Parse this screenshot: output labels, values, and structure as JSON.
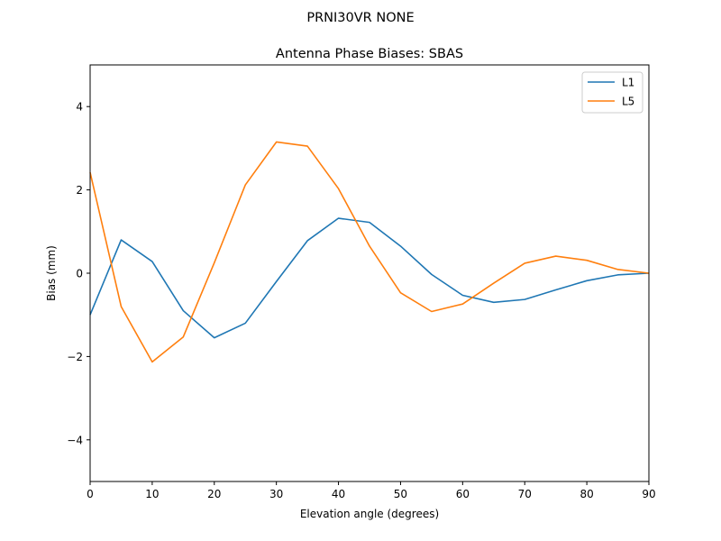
{
  "suptitle": "PRNI30VR         NONE",
  "chart_data": {
    "type": "line",
    "title": "Antenna Phase Biases: SBAS",
    "xlabel": "Elevation angle (degrees)",
    "ylabel": "Bias (mm)",
    "xlim": [
      0,
      90
    ],
    "ylim": [
      -5,
      5
    ],
    "xticks": [
      0,
      10,
      20,
      30,
      40,
      50,
      60,
      70,
      80,
      90
    ],
    "yticks": [
      -4,
      -2,
      0,
      2,
      4
    ],
    "xtick_labels": [
      "0",
      "10",
      "20",
      "30",
      "40",
      "50",
      "60",
      "70",
      "80",
      "90"
    ],
    "ytick_labels": [
      "−4",
      "−2",
      "0",
      "2",
      "4"
    ],
    "grid": false,
    "legend_position": "top-right",
    "x": [
      0,
      5,
      10,
      15,
      20,
      25,
      30,
      35,
      40,
      45,
      50,
      55,
      60,
      65,
      70,
      75,
      80,
      85,
      90
    ],
    "series": [
      {
        "name": "L1",
        "color": "#1f77b4",
        "values": [
          -1.0,
          0.8,
          0.28,
          -0.9,
          -1.55,
          -1.2,
          -0.2,
          0.78,
          1.32,
          1.22,
          0.65,
          -0.03,
          -0.53,
          -0.7,
          -0.63,
          -0.4,
          -0.18,
          -0.04,
          0.0
        ]
      },
      {
        "name": "L5",
        "color": "#ff7f0e",
        "values": [
          2.42,
          -0.8,
          -2.13,
          -1.53,
          0.25,
          2.12,
          3.15,
          3.05,
          2.03,
          0.65,
          -0.47,
          -0.92,
          -0.74,
          -0.24,
          0.24,
          0.41,
          0.31,
          0.09,
          0.0
        ]
      }
    ]
  }
}
